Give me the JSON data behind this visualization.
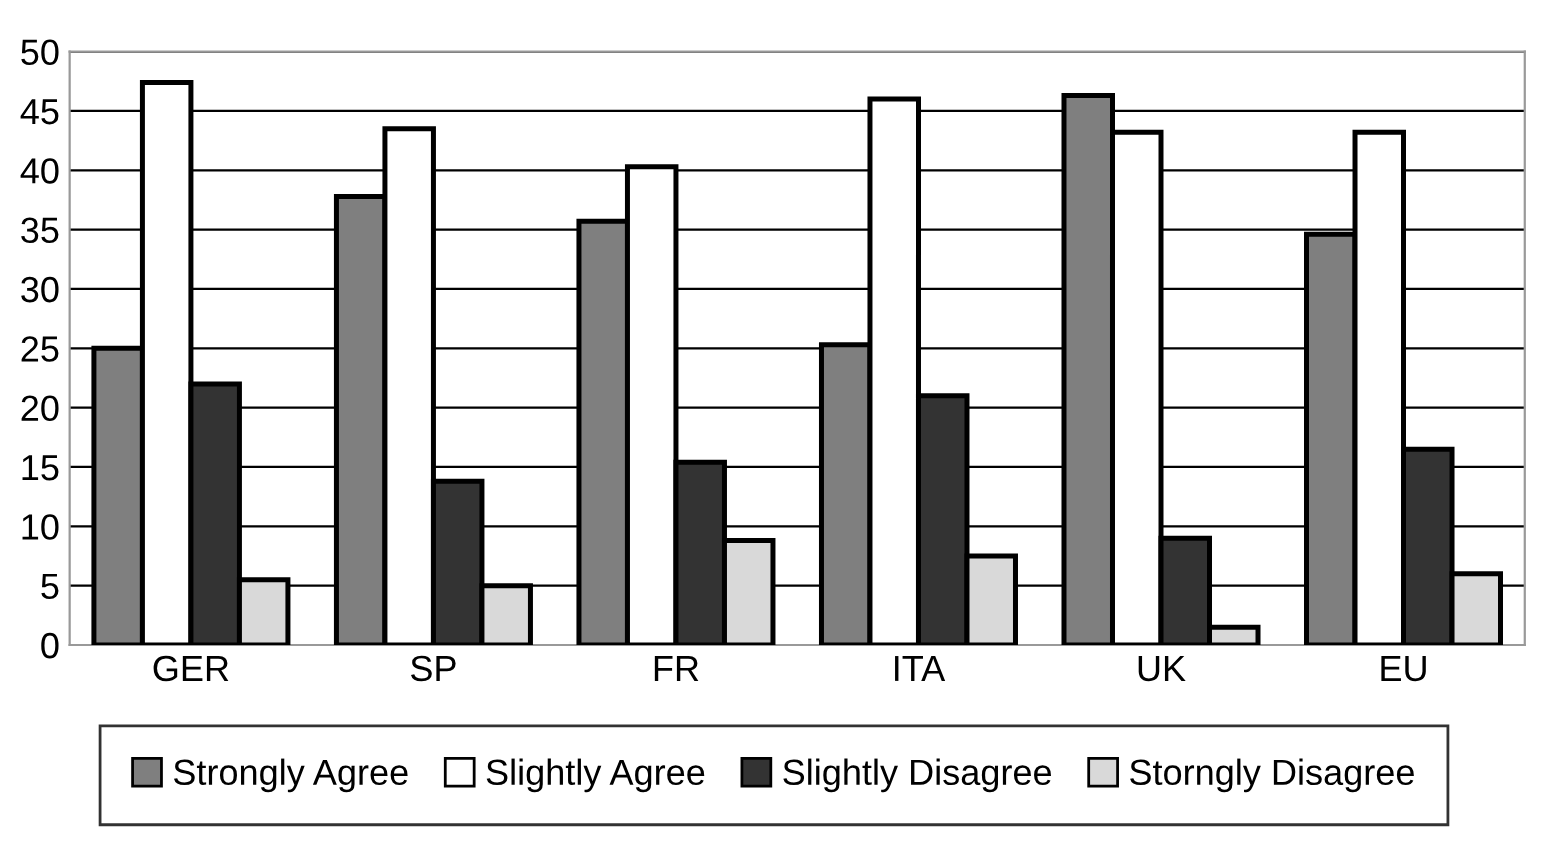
{
  "chart_data": {
    "type": "bar",
    "categories": [
      "GER",
      "SP",
      "FR",
      "ITA",
      "UK",
      "EU"
    ],
    "series": [
      {
        "name": "Strongly Agree",
        "color": "#7f7f7f",
        "values": [
          25,
          37.8,
          35.7,
          25.3,
          46.3,
          34.6
        ]
      },
      {
        "name": "Slightly Agree",
        "color": "#ffffff",
        "values": [
          47.4,
          43.5,
          40.3,
          46,
          43.2,
          43.2
        ]
      },
      {
        "name": "Slightly Disagree",
        "color": "#333333",
        "values": [
          22,
          13.8,
          15.4,
          21,
          9,
          16.5
        ]
      },
      {
        "name": "Storngly Disagree",
        "color": "#d9d9d9",
        "values": [
          5.5,
          5,
          8.8,
          7.5,
          1.5,
          6
        ]
      }
    ],
    "ylim": [
      0,
      50
    ],
    "yticks": [
      0,
      5,
      10,
      15,
      20,
      25,
      30,
      35,
      40,
      45,
      50
    ],
    "grid": "y",
    "legend": "bottom"
  }
}
